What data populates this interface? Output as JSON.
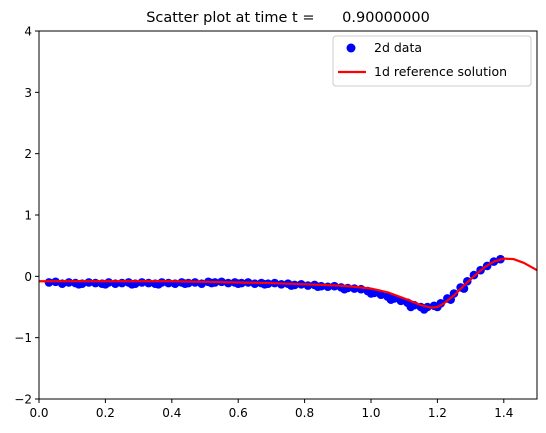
{
  "chart_data": {
    "type": "scatter",
    "title": "Scatter plot at time t =      0.90000000",
    "xlabel": "",
    "ylabel": "",
    "xlim": [
      0,
      1.5
    ],
    "ylim": [
      -2,
      4
    ],
    "xticks": [
      "0.0",
      "0.2",
      "0.4",
      "0.6",
      "0.8",
      "1.0",
      "1.2",
      "1.4"
    ],
    "yticks": [
      "−2",
      "−1",
      "0",
      "1",
      "2",
      "3",
      "4"
    ],
    "xtick_values": [
      0,
      0.2,
      0.4,
      0.6,
      0.8,
      1.0,
      1.2,
      1.4
    ],
    "ytick_values": [
      -2,
      -1,
      0,
      1,
      2,
      3,
      4
    ],
    "grid": false,
    "legend_position": "top-right",
    "series": [
      {
        "name": "2d data",
        "kind": "scatter",
        "color": "#0000ff",
        "points": [
          [
            0.03,
            -0.1
          ],
          [
            0.07,
            -0.12
          ],
          [
            0.09,
            -0.1
          ],
          [
            0.11,
            -0.11
          ],
          [
            0.13,
            -0.12
          ],
          [
            0.15,
            -0.1
          ],
          [
            0.17,
            -0.11
          ],
          [
            0.19,
            -0.12
          ],
          [
            0.21,
            -0.1
          ],
          [
            0.23,
            -0.12
          ],
          [
            0.25,
            -0.11
          ],
          [
            0.27,
            -0.1
          ],
          [
            0.29,
            -0.12
          ],
          [
            0.31,
            -0.1
          ],
          [
            0.33,
            -0.11
          ],
          [
            0.35,
            -0.12
          ],
          [
            0.37,
            -0.1
          ],
          [
            0.39,
            -0.11
          ],
          [
            0.41,
            -0.12
          ],
          [
            0.43,
            -0.1
          ],
          [
            0.45,
            -0.11
          ],
          [
            0.47,
            -0.1
          ],
          [
            0.49,
            -0.12
          ],
          [
            0.51,
            -0.09
          ],
          [
            0.53,
            -0.1
          ],
          [
            0.55,
            -0.09
          ],
          [
            0.57,
            -0.11
          ],
          [
            0.59,
            -0.1
          ],
          [
            0.61,
            -0.11
          ],
          [
            0.63,
            -0.1
          ],
          [
            0.65,
            -0.12
          ],
          [
            0.67,
            -0.11
          ],
          [
            0.69,
            -0.12
          ],
          [
            0.71,
            -0.11
          ],
          [
            0.73,
            -0.13
          ],
          [
            0.75,
            -0.12
          ],
          [
            0.77,
            -0.14
          ],
          [
            0.79,
            -0.13
          ],
          [
            0.81,
            -0.15
          ],
          [
            0.83,
            -0.14
          ],
          [
            0.85,
            -0.16
          ],
          [
            0.87,
            -0.17
          ],
          [
            0.89,
            -0.16
          ],
          [
            0.91,
            -0.18
          ],
          [
            0.93,
            -0.19
          ],
          [
            0.95,
            -0.2
          ],
          [
            0.97,
            -0.21
          ],
          [
            0.99,
            -0.24
          ],
          [
            1.01,
            -0.27
          ],
          [
            1.03,
            -0.3
          ],
          [
            1.05,
            -0.33
          ],
          [
            1.07,
            -0.36
          ],
          [
            1.09,
            -0.4
          ],
          [
            1.11,
            -0.43
          ],
          [
            1.13,
            -0.47
          ],
          [
            1.15,
            -0.5
          ],
          [
            1.17,
            -0.5
          ],
          [
            1.19,
            -0.48
          ],
          [
            1.21,
            -0.44
          ],
          [
            1.23,
            -0.36
          ],
          [
            1.25,
            -0.28
          ],
          [
            1.27,
            -0.18
          ],
          [
            1.29,
            -0.08
          ],
          [
            1.31,
            0.02
          ],
          [
            1.33,
            0.1
          ],
          [
            1.35,
            0.17
          ],
          [
            1.37,
            0.24
          ],
          [
            1.39,
            0.28
          ],
          [
            0.05,
            -0.09
          ],
          [
            0.12,
            -0.13
          ],
          [
            0.2,
            -0.13
          ],
          [
            0.28,
            -0.13
          ],
          [
            0.36,
            -0.13
          ],
          [
            0.44,
            -0.12
          ],
          [
            0.52,
            -0.11
          ],
          [
            0.6,
            -0.12
          ],
          [
            0.68,
            -0.13
          ],
          [
            0.76,
            -0.15
          ],
          [
            0.84,
            -0.17
          ],
          [
            0.92,
            -0.21
          ],
          [
            1.0,
            -0.28
          ],
          [
            1.06,
            -0.38
          ],
          [
            1.12,
            -0.5
          ],
          [
            1.16,
            -0.54
          ],
          [
            1.2,
            -0.5
          ],
          [
            1.24,
            -0.38
          ],
          [
            1.28,
            -0.2
          ]
        ]
      },
      {
        "name": "1d reference solution",
        "kind": "line",
        "color": "#ff0000",
        "points": [
          [
            0.0,
            -0.08
          ],
          [
            0.1,
            -0.08
          ],
          [
            0.2,
            -0.08
          ],
          [
            0.3,
            -0.08
          ],
          [
            0.4,
            -0.08
          ],
          [
            0.5,
            -0.09
          ],
          [
            0.6,
            -0.1
          ],
          [
            0.7,
            -0.11
          ],
          [
            0.8,
            -0.13
          ],
          [
            0.9,
            -0.15
          ],
          [
            0.95,
            -0.17
          ],
          [
            1.0,
            -0.2
          ],
          [
            1.05,
            -0.26
          ],
          [
            1.1,
            -0.36
          ],
          [
            1.15,
            -0.47
          ],
          [
            1.18,
            -0.51
          ],
          [
            1.2,
            -0.5
          ],
          [
            1.22,
            -0.44
          ],
          [
            1.25,
            -0.31
          ],
          [
            1.28,
            -0.15
          ],
          [
            1.31,
            0.0
          ],
          [
            1.34,
            0.14
          ],
          [
            1.37,
            0.24
          ],
          [
            1.4,
            0.29
          ],
          [
            1.43,
            0.28
          ],
          [
            1.46,
            0.22
          ],
          [
            1.5,
            0.1
          ]
        ]
      }
    ]
  }
}
